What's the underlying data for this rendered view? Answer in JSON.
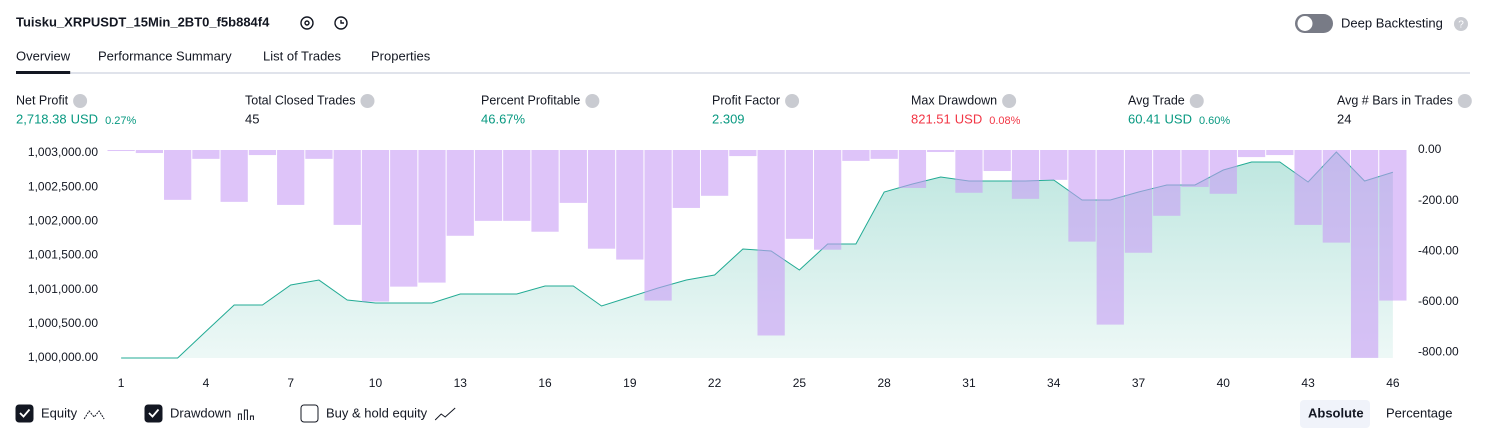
{
  "header": {
    "title": "Tuisku_XRPUSDT_15Min_2BT0_f5b884f4",
    "deep_backtesting": "Deep Backtesting",
    "deep_backtesting_on": false
  },
  "tabs": [
    "Overview",
    "Performance Summary",
    "List of Trades",
    "Properties"
  ],
  "active_tab": 0,
  "metrics": [
    {
      "label": "Net Profit",
      "value": "2,718.38",
      "unit": "USD",
      "percent": "0.27%",
      "color": "#089981"
    },
    {
      "label": "Total Closed Trades",
      "value": "45",
      "color": "#131722"
    },
    {
      "label": "Percent Profitable",
      "value": "46.67%",
      "color": "#089981"
    },
    {
      "label": "Profit Factor",
      "value": "2.309",
      "color": "#089981"
    },
    {
      "label": "Max Drawdown",
      "value": "821.51",
      "unit": "USD",
      "percent": "0.08%",
      "color": "#f23645"
    },
    {
      "label": "Avg Trade",
      "value": "60.41",
      "unit": "USD",
      "percent": "0.60%",
      "color": "#089981"
    },
    {
      "label": "Avg # Bars in Trades",
      "value": "24",
      "color": "#131722"
    }
  ],
  "chart_data": {
    "type": "combo",
    "x": [
      1,
      2,
      3,
      4,
      5,
      6,
      7,
      8,
      9,
      10,
      11,
      12,
      13,
      14,
      15,
      16,
      17,
      18,
      19,
      20,
      21,
      22,
      23,
      24,
      25,
      26,
      27,
      28,
      29,
      30,
      31,
      32,
      33,
      34,
      35,
      36,
      37,
      38,
      39,
      40,
      41,
      42,
      43,
      44,
      45,
      46
    ],
    "xlim": [
      0.5,
      46.5
    ],
    "xticks": [
      1,
      4,
      7,
      10,
      13,
      16,
      19,
      22,
      25,
      28,
      31,
      34,
      37,
      40,
      43,
      46
    ],
    "ylim": [
      1000000,
      1003044
    ],
    "yticks": [
      {
        "value": 1000000,
        "label": "1,000,000.00"
      },
      {
        "value": 1000500,
        "label": "1,000,500.00"
      },
      {
        "value": 1001000,
        "label": "1,001,000.00"
      },
      {
        "value": 1001500,
        "label": "1,001,500.00"
      },
      {
        "value": 1002000,
        "label": "1,002,000.00"
      },
      {
        "value": 1002500,
        "label": "1,002,500.00"
      },
      {
        "value": 1003000,
        "label": "1,003,000.00"
      }
    ],
    "y2lim": [
      -822,
      0
    ],
    "y2ticks": [
      {
        "value": 0,
        "label": "0.00"
      },
      {
        "value": -200,
        "label": "-200.00"
      },
      {
        "value": -400,
        "label": "-400.00"
      },
      {
        "value": -600,
        "label": "-600.00"
      },
      {
        "value": -800,
        "label": "-800.00"
      }
    ],
    "series": [
      {
        "name": "Equity",
        "kind": "area",
        "color": "#22ab94",
        "checked": true,
        "values": [
          1000000,
          1000000,
          1000000,
          1000390,
          1000775,
          1000775,
          1001068,
          1001141,
          1000849,
          1000805,
          1000805,
          1000805,
          1000937,
          1000937,
          1000937,
          1001054,
          1001054,
          1000761,
          1000893,
          1001024,
          1001141,
          1001215,
          1001595,
          1001566,
          1001288,
          1001668,
          1001668,
          1002429,
          1002546,
          1002649,
          1002590,
          1002590,
          1002590,
          1002605,
          1002312,
          1002312,
          1002429,
          1002532,
          1002532,
          1002751,
          1002868,
          1002868,
          1002576,
          1003015,
          1002590,
          1002718
        ]
      },
      {
        "name": "Drawdown",
        "kind": "bar",
        "axis": "y2",
        "color": "#c89cf5",
        "checked": true,
        "values": [
          -4,
          -12,
          -197,
          -35,
          -205,
          -20,
          -217,
          -35,
          -296,
          -599,
          -540,
          -524,
          -339,
          -280,
          -280,
          -323,
          -209,
          -390,
          -433,
          -595,
          -229,
          -181,
          -24,
          -733,
          -351,
          -394,
          -43,
          -35,
          -150,
          -8,
          -169,
          -83,
          -193,
          -118,
          -362,
          -690,
          -406,
          -260,
          -146,
          -173,
          -28,
          -20,
          -296,
          -366,
          -821.51,
          -595
        ]
      }
    ],
    "extra_legend": {
      "label": "Buy & hold equity",
      "checked": false
    }
  },
  "scale_options": [
    "Absolute",
    "Percentage"
  ],
  "scale_selected": 0
}
